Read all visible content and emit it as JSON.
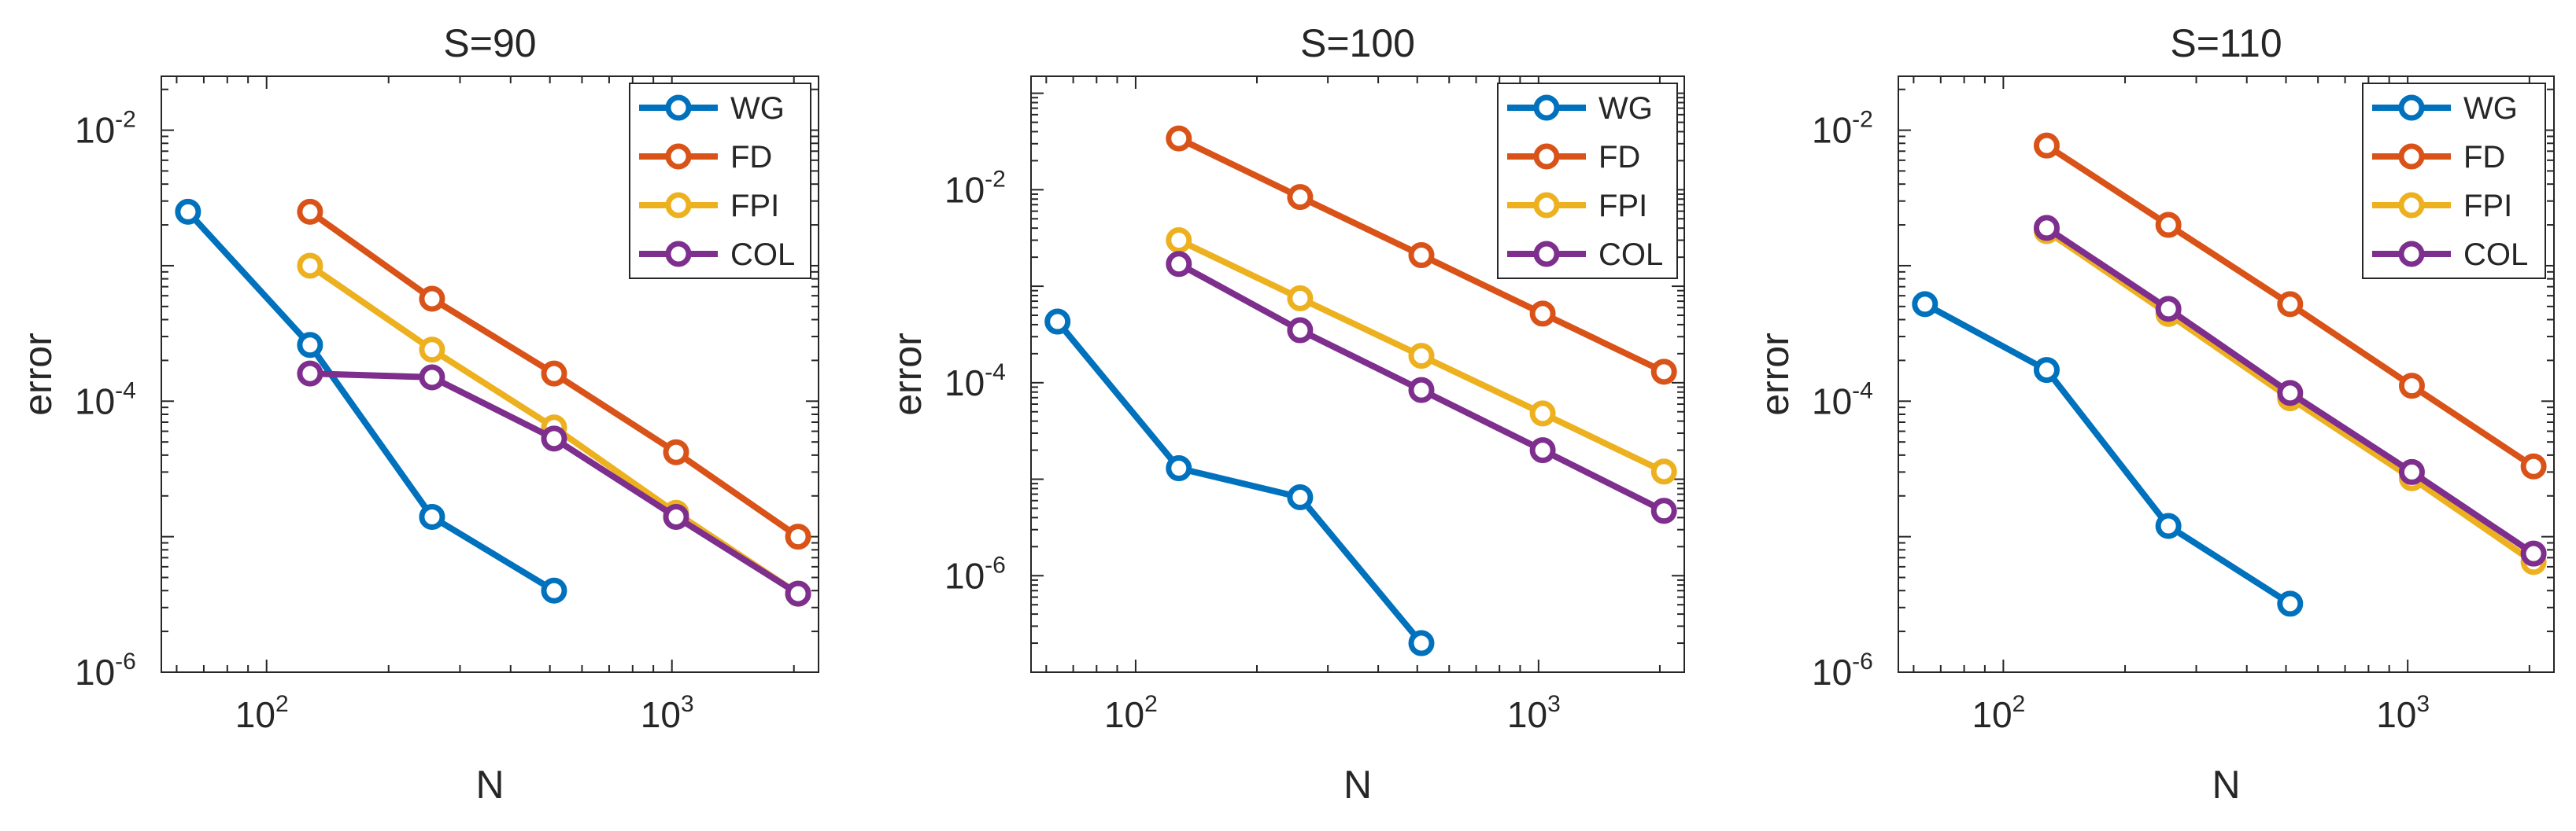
{
  "chart_data": [
    {
      "type": "line",
      "title": "S=90",
      "xlabel": "N",
      "ylabel": "error",
      "xscale": "log",
      "yscale": "log",
      "xlim": [
        55,
        2300
      ],
      "ylim": [
        1e-06,
        0.025
      ],
      "x_ticks": [
        {
          "base": "10",
          "exp": "2",
          "value": 100
        },
        {
          "base": "10",
          "exp": "3",
          "value": 1000
        }
      ],
      "y_ticks": [
        {
          "base": "10",
          "exp": "-6",
          "value": 1e-06
        },
        {
          "base": "10",
          "exp": "-4",
          "value": 0.0001
        },
        {
          "base": "10",
          "exp": "-2",
          "value": 0.01
        }
      ],
      "legend_position": "top-right",
      "series": [
        {
          "name": "WG",
          "x": [
            64,
            128,
            256,
            512
          ],
          "y": [
            0.0025,
            0.00026,
            1.4e-05,
            4e-06
          ]
        },
        {
          "name": "FD",
          "x": [
            128,
            256,
            512,
            1024,
            2048
          ],
          "y": [
            0.0025,
            0.00057,
            0.00016,
            4.2e-05,
            1e-05
          ]
        },
        {
          "name": "FPI",
          "x": [
            128,
            256,
            512,
            1024,
            2048
          ],
          "y": [
            0.001,
            0.00024,
            6.4e-05,
            1.5e-05,
            3.8e-06
          ]
        },
        {
          "name": "COL",
          "x": [
            128,
            256,
            512,
            1024,
            2048
          ],
          "y": [
            0.00016,
            0.00015,
            5.3e-05,
            1.4e-05,
            3.8e-06
          ]
        }
      ]
    },
    {
      "type": "line",
      "title": "S=100",
      "xlabel": "N",
      "ylabel": "error",
      "xscale": "log",
      "yscale": "log",
      "xlim": [
        55,
        2300
      ],
      "ylim": [
        1e-07,
        0.15
      ],
      "x_ticks": [
        {
          "base": "10",
          "exp": "2",
          "value": 100
        },
        {
          "base": "10",
          "exp": "3",
          "value": 1000
        }
      ],
      "y_ticks": [
        {
          "base": "10",
          "exp": "-6",
          "value": 1e-06
        },
        {
          "base": "10",
          "exp": "-4",
          "value": 0.0001
        },
        {
          "base": "10",
          "exp": "-2",
          "value": 0.01
        }
      ],
      "legend_position": "top-right",
      "series": [
        {
          "name": "WG",
          "x": [
            64,
            128,
            256,
            512
          ],
          "y": [
            0.00043,
            1.3e-05,
            6.5e-06,
            2e-07
          ]
        },
        {
          "name": "FD",
          "x": [
            128,
            256,
            512,
            1024,
            2048
          ],
          "y": [
            0.034,
            0.0084,
            0.0021,
            0.00052,
            0.00013
          ]
        },
        {
          "name": "FPI",
          "x": [
            128,
            256,
            512,
            1024,
            2048
          ],
          "y": [
            0.003,
            0.00075,
            0.00019,
            4.8e-05,
            1.2e-05
          ]
        },
        {
          "name": "COL",
          "x": [
            128,
            256,
            512,
            1024,
            2048
          ],
          "y": [
            0.0017,
            0.00035,
            8.4e-05,
            2e-05,
            4.7e-06
          ]
        }
      ]
    },
    {
      "type": "line",
      "title": "S=110",
      "xlabel": "N",
      "ylabel": "error",
      "xscale": "log",
      "yscale": "log",
      "xlim": [
        55,
        2300
      ],
      "ylim": [
        1e-06,
        0.025
      ],
      "x_ticks": [
        {
          "base": "10",
          "exp": "2",
          "value": 100
        },
        {
          "base": "10",
          "exp": "3",
          "value": 1000
        }
      ],
      "y_ticks": [
        {
          "base": "10",
          "exp": "-6",
          "value": 1e-06
        },
        {
          "base": "10",
          "exp": "-4",
          "value": 0.0001
        },
        {
          "base": "10",
          "exp": "-2",
          "value": 0.01
        }
      ],
      "legend_position": "top-right",
      "series": [
        {
          "name": "WG",
          "x": [
            64,
            128,
            256,
            512
          ],
          "y": [
            0.00052,
            0.00017,
            1.2e-05,
            3.2e-06
          ]
        },
        {
          "name": "FD",
          "x": [
            128,
            256,
            512,
            1024,
            2048
          ],
          "y": [
            0.0077,
            0.002,
            0.00052,
            0.00013,
            3.3e-05
          ]
        },
        {
          "name": "FPI",
          "x": [
            128,
            256,
            512,
            1024,
            2048
          ],
          "y": [
            0.0018,
            0.00044,
            0.000105,
            2.7e-05,
            6.5e-06
          ]
        },
        {
          "name": "COL",
          "x": [
            128,
            256,
            512,
            1024,
            2048
          ],
          "y": [
            0.0019,
            0.00048,
            0.000115,
            3e-05,
            7.5e-06
          ]
        }
      ]
    }
  ],
  "colors": {
    "WG": "#0072BD",
    "FD": "#D95319",
    "FPI": "#EDB120",
    "COL": "#7E2F8E",
    "axis": "#262626",
    "background": "#ffffff"
  }
}
